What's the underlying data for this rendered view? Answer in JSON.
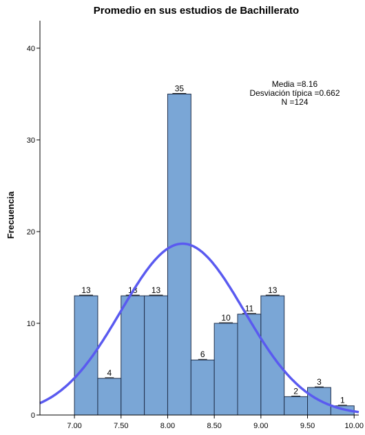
{
  "chart_data": {
    "type": "bar",
    "title": "Promedio en sus estudios de Bachillerato",
    "xlabel": "",
    "ylabel": "Frecuencia",
    "bin_edges": [
      7.0,
      7.25,
      7.5,
      7.75,
      8.0,
      8.25,
      8.5,
      8.75,
      9.0,
      9.25,
      9.5,
      9.75,
      10.0
    ],
    "values": [
      13,
      4,
      13,
      13,
      35,
      6,
      10,
      11,
      13,
      2,
      3,
      1
    ],
    "data_labels": [
      "13",
      "4",
      "13",
      "13",
      "35",
      "6",
      "10",
      "11",
      "13",
      "2",
      "3",
      "1"
    ],
    "xlim": [
      6.63,
      10.05
    ],
    "ylim": [
      0,
      43
    ],
    "x_ticks": [
      7.0,
      7.5,
      8.0,
      8.5,
      9.0,
      9.5,
      10.0
    ],
    "x_tick_labels": [
      "7.00",
      "7.50",
      "8.00",
      "8.50",
      "9.00",
      "9.50",
      "10.00"
    ],
    "y_ticks": [
      0,
      10,
      20,
      30,
      40
    ],
    "y_tick_labels": [
      "0",
      "10",
      "20",
      "30",
      "40"
    ],
    "normal_curve": {
      "mean": 8.16,
      "sd": 0.662,
      "n": 124,
      "bin_width": 0.25
    },
    "stats": [
      "Media =8.16",
      "Desviación típica =0.662",
      "N =124"
    ],
    "grid": false,
    "legend": "none",
    "colors": {
      "bar": "#7aa6d6",
      "bar_edge": "#1f2f4a",
      "curve": "#5a5af0"
    }
  }
}
